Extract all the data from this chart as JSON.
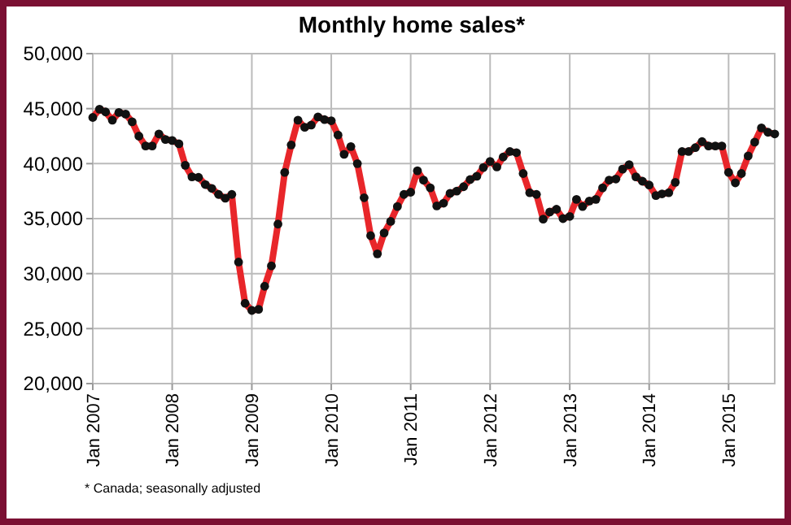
{
  "chart_data": {
    "type": "line",
    "title": "Monthly home sales*",
    "annotations": [
      "* Canada; seasonally adjusted"
    ],
    "x": [
      "2007-01",
      "2007-02",
      "2007-03",
      "2007-04",
      "2007-05",
      "2007-06",
      "2007-07",
      "2007-08",
      "2007-09",
      "2007-10",
      "2007-11",
      "2007-12",
      "2008-01",
      "2008-02",
      "2008-03",
      "2008-04",
      "2008-05",
      "2008-06",
      "2008-07",
      "2008-08",
      "2008-09",
      "2008-10",
      "2008-11",
      "2008-12",
      "2009-01",
      "2009-02",
      "2009-03",
      "2009-04",
      "2009-05",
      "2009-06",
      "2009-07",
      "2009-08",
      "2009-09",
      "2009-10",
      "2009-11",
      "2009-12",
      "2010-01",
      "2010-02",
      "2010-03",
      "2010-04",
      "2010-05",
      "2010-06",
      "2010-07",
      "2010-08",
      "2010-09",
      "2010-10",
      "2010-11",
      "2010-12",
      "2011-01",
      "2011-02",
      "2011-03",
      "2011-04",
      "2011-05",
      "2011-06",
      "2011-07",
      "2011-08",
      "2011-09",
      "2011-10",
      "2011-11",
      "2011-12",
      "2012-01",
      "2012-02",
      "2012-03",
      "2012-04",
      "2012-05",
      "2012-06",
      "2012-07",
      "2012-08",
      "2012-09",
      "2012-10",
      "2012-11",
      "2012-12",
      "2013-01",
      "2013-02",
      "2013-03",
      "2013-04",
      "2013-05",
      "2013-06",
      "2013-07",
      "2013-08",
      "2013-09",
      "2013-10",
      "2013-11",
      "2013-12",
      "2014-01",
      "2014-02",
      "2014-03",
      "2014-04",
      "2014-05",
      "2014-06",
      "2014-07",
      "2014-08",
      "2014-09",
      "2014-10",
      "2014-11",
      "2014-12",
      "2015-01",
      "2015-02",
      "2015-03",
      "2015-04",
      "2015-05",
      "2015-06",
      "2015-07",
      "2015-08"
    ],
    "series": [
      {
        "color": "#e8262a",
        "values": [
          44200,
          44950,
          44700,
          43950,
          44650,
          44500,
          43800,
          42500,
          41600,
          41600,
          42700,
          42200,
          42100,
          41800,
          39850,
          38800,
          38750,
          38100,
          37750,
          37200,
          36850,
          37200,
          31050,
          27300,
          26650,
          26750,
          28850,
          30700,
          34500,
          39200,
          41700,
          43950,
          43300,
          43500,
          44250,
          44000,
          43900,
          42600,
          40850,
          41550,
          40000,
          36900,
          33450,
          31800,
          33700,
          34750,
          36100,
          37200,
          37400,
          39350,
          38500,
          37800,
          36150,
          36400,
          37300,
          37500,
          37900,
          38550,
          38850,
          39650,
          40200,
          39700,
          40600,
          41100,
          41000,
          39100,
          37350,
          37200,
          34950,
          35600,
          35850,
          35000,
          35200,
          36750,
          36100,
          36600,
          36750,
          37800,
          38500,
          38600,
          39500,
          39900,
          38800,
          38400,
          38050,
          37100,
          37250,
          37350,
          38300,
          41100,
          41100,
          41450,
          42000,
          41600,
          41600,
          41600,
          39200,
          38250,
          39100,
          40700,
          41950,
          43250,
          42850,
          42700
        ]
      }
    ],
    "xlim": [
      "2007-01",
      "2015-08"
    ],
    "xticks": [
      {
        "value": "2007-01",
        "label": "Jan 2007"
      },
      {
        "value": "2008-01",
        "label": "Jan 2008"
      },
      {
        "value": "2009-01",
        "label": "Jan 2009"
      },
      {
        "value": "2010-01",
        "label": "Jan 2010"
      },
      {
        "value": "2011-01",
        "label": "Jan 2011"
      },
      {
        "value": "2012-01",
        "label": "Jan 2012"
      },
      {
        "value": "2013-01",
        "label": "Jan 2013"
      },
      {
        "value": "2014-01",
        "label": "Jan 2014"
      },
      {
        "value": "2015-01",
        "label": "Jan 2015"
      }
    ],
    "ylim": [
      20000,
      50000
    ],
    "yticks": [
      {
        "value": 20000,
        "label": "20,000"
      },
      {
        "value": 25000,
        "label": "25,000"
      },
      {
        "value": 30000,
        "label": "30,000"
      },
      {
        "value": 35000,
        "label": "35,000"
      },
      {
        "value": 40000,
        "label": "40,000"
      },
      {
        "value": 45000,
        "label": "45,000"
      },
      {
        "value": 50000,
        "label": "50,000"
      }
    ],
    "grid": true,
    "marker": "circle",
    "line_style": "solid"
  }
}
